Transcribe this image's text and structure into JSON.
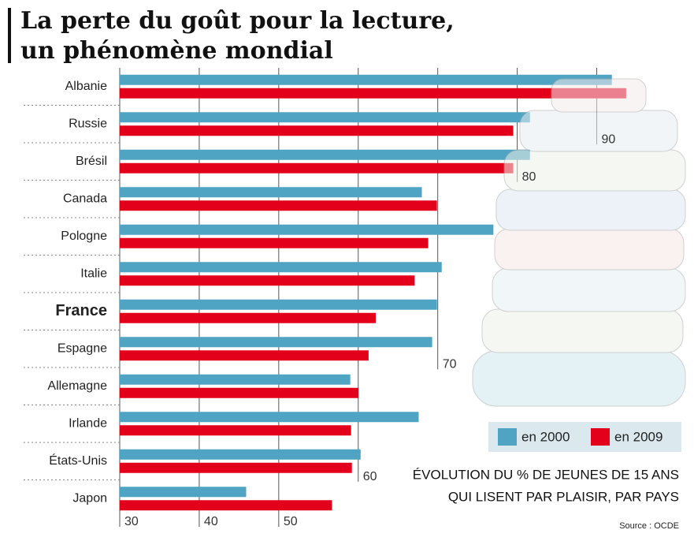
{
  "chart_data": {
    "type": "hbar",
    "title": [
      "La perte du goût pour la lecture,",
      "un phénomène mondial"
    ],
    "subtitle": [
      "ÉVOLUTION DU % DE JEUNES DE 15 ANS",
      "QUI LISENT PAR PLAISIR, PAR PAYS"
    ],
    "source": "Source : OCDE",
    "categories": [
      "Albanie",
      "Russie",
      "Brésil",
      "Canada",
      "Pologne",
      "Italie",
      "France",
      "Espagne",
      "Allemagne",
      "Irlande",
      "États-Unis",
      "Japon"
    ],
    "series": [
      {
        "name": "en 2000",
        "color": "#4fa3c3",
        "values": [
          91.9,
          81.6,
          81.6,
          68.0,
          77,
          70.5,
          69.9,
          69.3,
          59.0,
          67.6,
          60.3,
          45.9
        ]
      },
      {
        "name": "en 2009",
        "color": "#e3001b",
        "values": [
          93.7,
          79.5,
          79.5,
          69.9,
          68.8,
          67.1,
          62.2,
          61.3,
          60.0,
          59.1,
          59.2,
          56.7
        ]
      }
    ],
    "xlim": [
      30,
      95
    ],
    "xticks": [
      30,
      40,
      50,
      60,
      70,
      80,
      90
    ],
    "grid": true
  }
}
